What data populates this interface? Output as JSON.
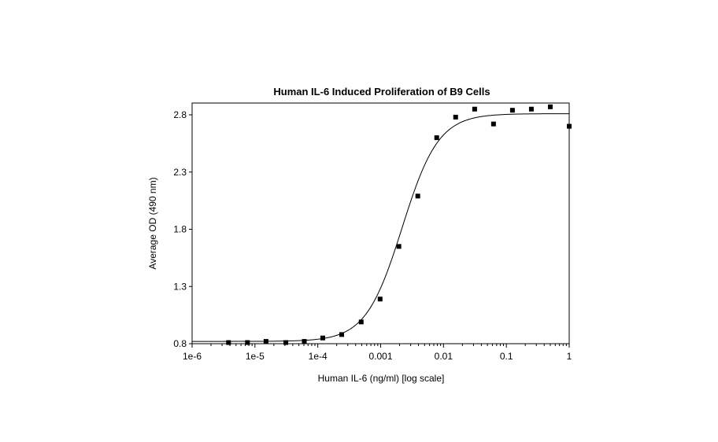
{
  "chart_data": {
    "type": "scatter",
    "title": "Human IL-6 Induced Proliferation of B9 Cells",
    "xlabel": "Human IL-6 (ng/ml) [log scale]",
    "ylabel": "Average OD (490 nm)",
    "x_scale": "log",
    "xlim": [
      1e-06,
      1
    ],
    "ylim": [
      0.8,
      2.9
    ],
    "x_ticks": [
      {
        "value": 1e-06,
        "label": "1e-6"
      },
      {
        "value": 1e-05,
        "label": "1e-5"
      },
      {
        "value": 0.0001,
        "label": "1e-4"
      },
      {
        "value": 0.001,
        "label": "0.001"
      },
      {
        "value": 0.01,
        "label": "0.01"
      },
      {
        "value": 0.1,
        "label": "0.1"
      },
      {
        "value": 1,
        "label": "1"
      }
    ],
    "y_ticks": [
      {
        "value": 0.8,
        "label": "0.8"
      },
      {
        "value": 1.3,
        "label": "1.3"
      },
      {
        "value": 1.8,
        "label": "1.8"
      },
      {
        "value": 2.3,
        "label": "2.3"
      },
      {
        "value": 2.8,
        "label": "2.8"
      }
    ],
    "grid": false,
    "points": [
      {
        "x": 3.8e-06,
        "y": 0.81
      },
      {
        "x": 7.6e-06,
        "y": 0.81
      },
      {
        "x": 1.5e-05,
        "y": 0.82
      },
      {
        "x": 3.1e-05,
        "y": 0.81
      },
      {
        "x": 6.1e-05,
        "y": 0.82
      },
      {
        "x": 0.00012,
        "y": 0.85
      },
      {
        "x": 0.00024,
        "y": 0.88
      },
      {
        "x": 0.00049,
        "y": 0.99
      },
      {
        "x": 0.00098,
        "y": 1.19
      },
      {
        "x": 0.00195,
        "y": 1.65
      },
      {
        "x": 0.0039,
        "y": 2.09
      },
      {
        "x": 0.0078,
        "y": 2.6
      },
      {
        "x": 0.0156,
        "y": 2.78
      },
      {
        "x": 0.0313,
        "y": 2.85
      },
      {
        "x": 0.0625,
        "y": 2.72
      },
      {
        "x": 0.125,
        "y": 2.84
      },
      {
        "x": 0.25,
        "y": 2.85
      },
      {
        "x": 0.5,
        "y": 2.87
      },
      {
        "x": 1.0,
        "y": 2.7
      }
    ],
    "fit_curve": {
      "model": "4PL",
      "bottom": 0.82,
      "top": 2.81,
      "ec50": 0.0022,
      "hill": 1.5
    }
  }
}
